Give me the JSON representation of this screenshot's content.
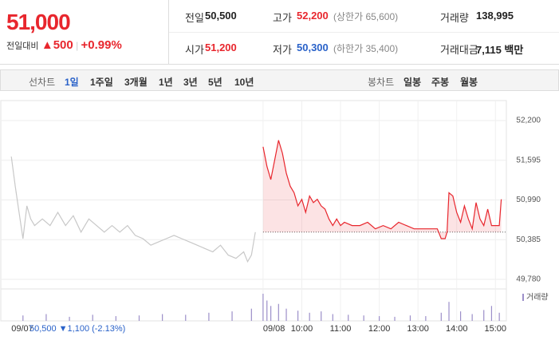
{
  "header": {
    "price": "51,000",
    "change_label": "전일대비",
    "change": "500",
    "rate": "+0.99%",
    "info": [
      [
        {
          "label": "전일",
          "value": "50,500"
        },
        {
          "label": "고가",
          "value": "52,200",
          "note": "(상한가 65,600)"
        },
        {
          "label": "거래량",
          "value": "138,995"
        }
      ],
      [
        {
          "label": "시가",
          "value": "51,200"
        },
        {
          "label": "저가",
          "value": "50,300",
          "note": "(하한가 35,400)"
        },
        {
          "label": "거래대금",
          "value": "7,115 백만"
        }
      ]
    ]
  },
  "tabs": {
    "line_label": "선차트",
    "line": [
      "1일",
      "1주일",
      "3개월",
      "1년",
      "3년",
      "5년",
      "10년"
    ],
    "candle_label": "봉차트",
    "candle": [
      "일봉",
      "주봉",
      "월봉"
    ]
  },
  "footer": {
    "price": "50,500",
    "change": "1,100",
    "rate": "(-2.13%)"
  },
  "chart_data": {
    "type": "line",
    "baseline": 50500,
    "grid": true,
    "xlim": [
      -0.19,
      13.05
    ],
    "ylim": [
      49780,
      52200
    ],
    "xticks": [
      {
        "value": 0,
        "label": "09/07"
      },
      {
        "value": 6.5,
        "label": "09/08"
      },
      {
        "value": 7.5,
        "label": "10:00"
      },
      {
        "value": 8.5,
        "label": "11:00"
      },
      {
        "value": 9.5,
        "label": "12:00"
      },
      {
        "value": 10.5,
        "label": "13:00"
      },
      {
        "value": 11.5,
        "label": "14:00"
      },
      {
        "value": 12.5,
        "label": "15:00"
      }
    ],
    "yticks": [
      {
        "value": 52200,
        "label": "52,200"
      },
      {
        "value": 51595,
        "label": "51,595"
      },
      {
        "value": 50990,
        "label": "50,990"
      },
      {
        "value": 50385,
        "label": "50,385"
      },
      {
        "value": 49780,
        "label": "49,780"
      }
    ],
    "series": [
      {
        "color": "#c8c8c8",
        "x": [
          0,
          0.1,
          0.2,
          0.3,
          0.4,
          0.5,
          0.6,
          0.8,
          1.0,
          1.2,
          1.4,
          1.6,
          1.8,
          2.0,
          2.2,
          2.4,
          2.6,
          2.8,
          3.0,
          3.2,
          3.4,
          3.6,
          3.8,
          4.0,
          4.2,
          4.4,
          4.6,
          4.8,
          5.0,
          5.2,
          5.4,
          5.6,
          5.8,
          6.0,
          6.1,
          6.2,
          6.3
        ],
        "values": [
          51650,
          51200,
          50800,
          50400,
          50900,
          50700,
          50600,
          50700,
          50600,
          50800,
          50600,
          50750,
          50500,
          50700,
          50600,
          50500,
          50600,
          50500,
          50600,
          50450,
          50400,
          50300,
          50350,
          50400,
          50450,
          50400,
          50350,
          50300,
          50250,
          50200,
          50300,
          50150,
          50100,
          50200,
          50050,
          50150,
          50500
        ]
      },
      {
        "color": "#e8262d",
        "x": [
          6.5,
          6.6,
          6.7,
          6.8,
          6.9,
          7.0,
          7.1,
          7.2,
          7.3,
          7.4,
          7.5,
          7.6,
          7.7,
          7.8,
          7.9,
          8.0,
          8.1,
          8.2,
          8.3,
          8.4,
          8.5,
          8.6,
          8.8,
          9.0,
          9.2,
          9.4,
          9.6,
          9.8,
          10.0,
          10.2,
          10.4,
          10.6,
          10.8,
          11.0,
          11.1,
          11.2,
          11.25,
          11.3,
          11.4,
          11.5,
          11.6,
          11.7,
          11.8,
          11.9,
          12.0,
          12.1,
          12.2,
          12.3,
          12.4,
          12.5,
          12.6,
          12.65
        ],
        "values": [
          51800,
          51500,
          51300,
          51600,
          51900,
          51700,
          51400,
          51200,
          51100,
          50900,
          51000,
          50800,
          51050,
          50950,
          51000,
          50900,
          50850,
          50700,
          50600,
          50700,
          50600,
          50650,
          50600,
          50600,
          50650,
          50550,
          50600,
          50550,
          50650,
          50600,
          50550,
          50550,
          50550,
          50550,
          50400,
          50400,
          50500,
          51100,
          51050,
          50800,
          50650,
          50900,
          50700,
          50550,
          50950,
          50700,
          50600,
          50850,
          50600,
          50600,
          50600,
          51000
        ]
      }
    ],
    "volume": {
      "name": "거래량",
      "color": "#9c8fc9",
      "x": [
        0.3,
        0.9,
        1.5,
        2.1,
        2.7,
        3.3,
        3.9,
        4.5,
        5.1,
        5.7,
        6.2,
        6.5,
        6.6,
        6.7,
        6.9,
        7.1,
        7.4,
        7.7,
        8.0,
        8.3,
        8.7,
        9.1,
        9.5,
        9.9,
        10.3,
        10.7,
        11.1,
        11.3,
        11.6,
        11.9,
        12.2,
        12.4,
        12.6
      ],
      "values": [
        8,
        10,
        6,
        9,
        7,
        8,
        10,
        9,
        12,
        14,
        18,
        40,
        30,
        22,
        25,
        18,
        15,
        12,
        14,
        10,
        9,
        8,
        7,
        6,
        8,
        7,
        12,
        28,
        14,
        10,
        16,
        22,
        12
      ]
    }
  }
}
